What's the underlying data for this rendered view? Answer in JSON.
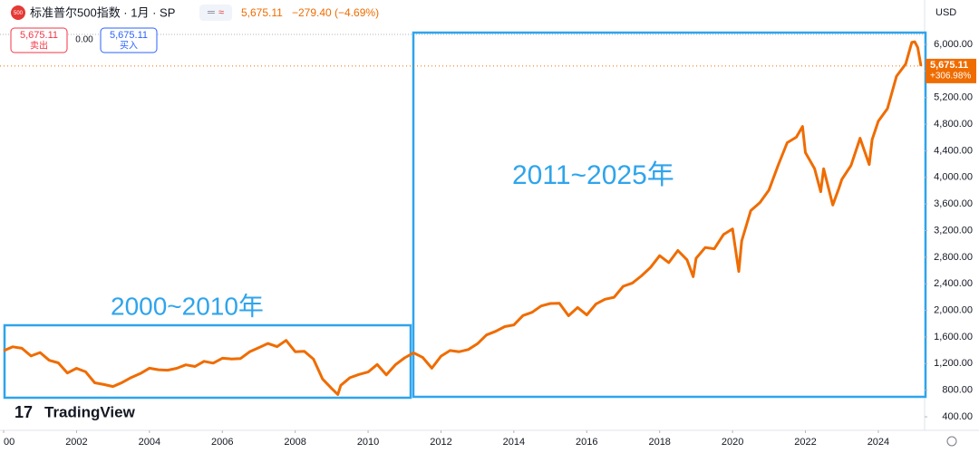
{
  "header": {
    "symbol_icon": "500",
    "title": "标准普尔500指数 · 1月 · SP",
    "quote": "5,675.11",
    "change": "−279.40 (−4.69%)",
    "sell_price": "5,675.11",
    "sell_label": "卖出",
    "spread": "0.00",
    "buy_price": "5,675.11",
    "buy_label": "买入",
    "currency": "USD"
  },
  "logo": "TradingView",
  "chart_data": {
    "type": "line",
    "color": "#ef6c00",
    "x": [
      2000.0,
      2000.25,
      2000.5,
      2000.75,
      2001.0,
      2001.25,
      2001.5,
      2001.75,
      2002.0,
      2002.25,
      2002.5,
      2002.75,
      2003.0,
      2003.25,
      2003.5,
      2003.75,
      2004.0,
      2004.25,
      2004.5,
      2004.75,
      2005.0,
      2005.25,
      2005.5,
      2005.75,
      2006.0,
      2006.25,
      2006.5,
      2006.75,
      2007.0,
      2007.25,
      2007.5,
      2007.75,
      2008.0,
      2008.25,
      2008.5,
      2008.75,
      2009.0,
      2009.17,
      2009.25,
      2009.5,
      2009.75,
      2010.0,
      2010.25,
      2010.5,
      2010.75,
      2011.0,
      2011.25,
      2011.5,
      2011.75,
      2012.0,
      2012.25,
      2012.5,
      2012.75,
      2013.0,
      2013.25,
      2013.5,
      2013.75,
      2014.0,
      2014.25,
      2014.5,
      2014.75,
      2015.0,
      2015.25,
      2015.5,
      2015.75,
      2016.0,
      2016.25,
      2016.5,
      2016.75,
      2017.0,
      2017.25,
      2017.5,
      2017.75,
      2018.0,
      2018.25,
      2018.5,
      2018.75,
      2018.92,
      2019.0,
      2019.25,
      2019.5,
      2019.75,
      2020.0,
      2020.17,
      2020.25,
      2020.5,
      2020.75,
      2021.0,
      2021.25,
      2021.5,
      2021.75,
      2021.92,
      2022.0,
      2022.25,
      2022.42,
      2022.5,
      2022.75,
      2022.92,
      2023.0,
      2023.25,
      2023.5,
      2023.75,
      2023.83,
      2024.0,
      2024.25,
      2024.5,
      2024.75,
      2024.92,
      2025.0,
      2025.08,
      2025.17
    ],
    "values": [
      1394,
      1452,
      1430,
      1315,
      1366,
      1249,
      1211,
      1059,
      1130,
      1076,
      912,
      885,
      855,
      916,
      990,
      1050,
      1131,
      1107,
      1101,
      1130,
      1181,
      1156,
      1234,
      1207,
      1280,
      1270,
      1276,
      1377,
      1438,
      1503,
      1455,
      1549,
      1378,
      1385,
      1267,
      968,
      825,
      735,
      872,
      987,
      1036,
      1073,
      1186,
      1030,
      1183,
      1286,
      1363,
      1292,
      1131,
      1312,
      1397,
      1379,
      1412,
      1498,
      1631,
      1685,
      1756,
      1782,
      1923,
      1972,
      2067,
      2104,
      2107,
      1920,
      2044,
      1932,
      2096,
      2168,
      2198,
      2363,
      2411,
      2519,
      2647,
      2823,
      2718,
      2901,
      2760,
      2507,
      2784,
      2945,
      2926,
      3140,
      3225,
      2585,
      3044,
      3500,
      3621,
      3811,
      4181,
      4522,
      4605,
      4766,
      4373,
      4132,
      3785,
      4130,
      3585,
      3840,
      3970,
      4179,
      4589,
      4193,
      4568,
      4845,
      5035,
      5522,
      5705,
      6032,
      6040,
      5954,
      5675.11
    ],
    "xlim": [
      1999.9,
      2025.27
    ],
    "xticks": [
      {
        "value": 2000,
        "label": "00"
      },
      2002,
      2004,
      2006,
      2008,
      2010,
      2012,
      2014,
      2016,
      2018,
      2020,
      2022,
      2024
    ],
    "ylim": [
      196,
      6668
    ],
    "yticks": [
      {
        "value": 400,
        "label": "400.00"
      },
      {
        "value": 800,
        "label": "800.00"
      },
      {
        "value": 1200,
        "label": "1,200.00"
      },
      {
        "value": 1600,
        "label": "1,600.00"
      },
      {
        "value": 2000,
        "label": "2,000.00"
      },
      {
        "value": 2400,
        "label": "2,400.00"
      },
      {
        "value": 2800,
        "label": "2,800.00"
      },
      {
        "value": 3200,
        "label": "3,200.00"
      },
      {
        "value": 3600,
        "label": "3,600.00"
      },
      {
        "value": 4000,
        "label": "4,000.00"
      },
      {
        "value": 4400,
        "label": "4,400.00"
      },
      {
        "value": 4800,
        "label": "4,800.00"
      },
      {
        "value": 5200,
        "label": "5,200.00"
      },
      {
        "value": 5600,
        "label": "5,600.00"
      },
      {
        "value": 6000,
        "label": "6,000.00"
      }
    ],
    "grid": false,
    "last_label": "5,675.11",
    "last_change": "+306.98%",
    "annotations": [
      {
        "text": "2000~2010年"
      },
      {
        "text": "2011~2025年"
      }
    ]
  }
}
